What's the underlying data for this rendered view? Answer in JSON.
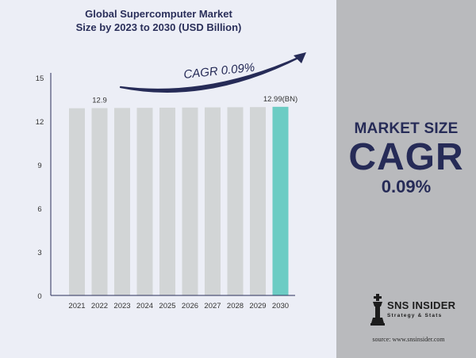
{
  "chart_data": {
    "type": "bar",
    "title_lines": [
      "Global Supercomputer Market",
      "Size by 2023 to 2030 (USD Billion)"
    ],
    "categories": [
      "2021",
      "2022",
      "2023",
      "2024",
      "2025",
      "2026",
      "2027",
      "2028",
      "2029",
      "2030"
    ],
    "values": [
      12.89,
      12.9,
      12.91,
      12.92,
      12.93,
      12.94,
      12.95,
      12.96,
      12.97,
      12.99
    ],
    "data_labels": [
      {
        "category": "2022",
        "text": "12.9"
      },
      {
        "category": "2030",
        "text": "12.99(BN)"
      }
    ],
    "yticks": [
      "0",
      "3",
      "6",
      "9",
      "12",
      "15"
    ],
    "ylim": [
      0,
      15
    ],
    "xlabel": "",
    "ylabel": "",
    "grid": false,
    "legend": "none",
    "annotation": "CAGR 0.09%",
    "colors": {
      "bar": "#d2d5d6",
      "highlight": "#6cccc4",
      "axis": "#2a2f5a",
      "arrow": "#262b57"
    }
  },
  "side_panel": {
    "heading": "MARKET SIZE",
    "big": "CAGR",
    "value": "0.09%"
  },
  "logo": {
    "name": "SNS INSIDER",
    "tagline": "Strategy & Stats"
  },
  "source": "source: www.snsinsider.com"
}
